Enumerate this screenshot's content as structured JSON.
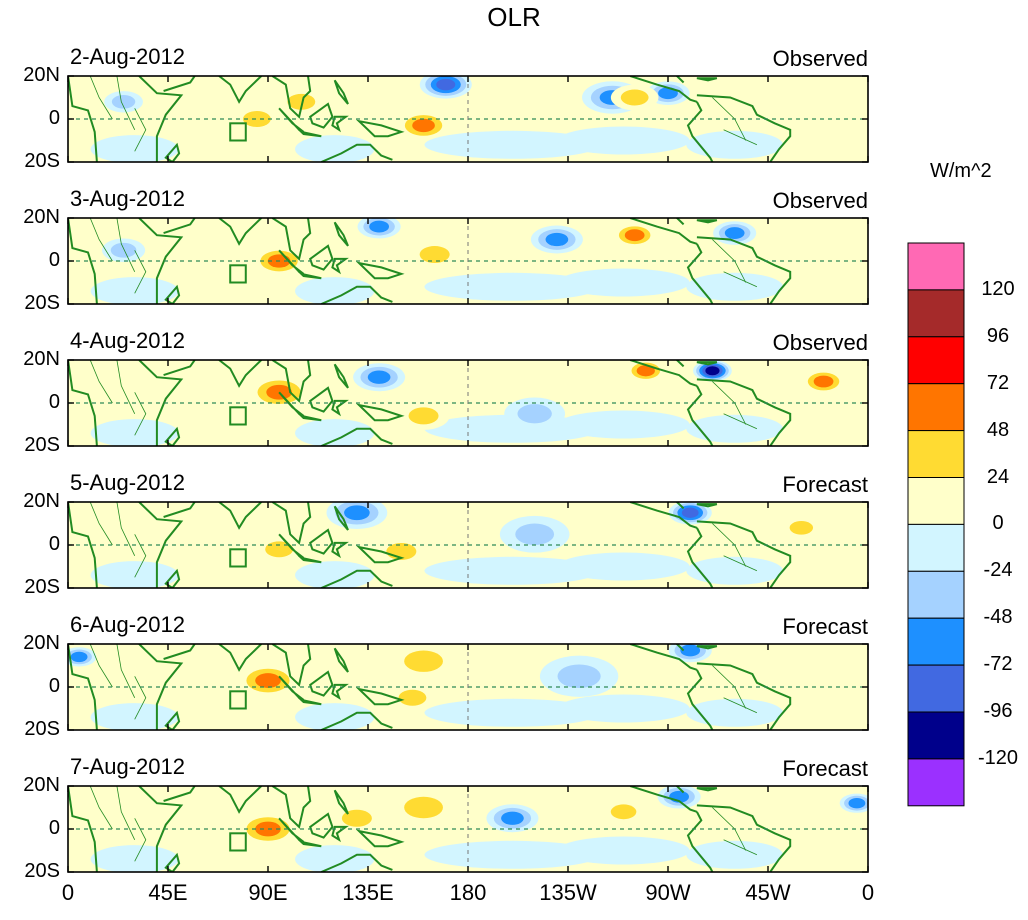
{
  "chart_data": {
    "type": "heatmap",
    "title": "OLR",
    "variable": "OLR anomaly",
    "units": "W/m^2",
    "x_axis": {
      "ticks": [
        "0",
        "45E",
        "90E",
        "135E",
        "180",
        "135W",
        "90W",
        "45W",
        "0"
      ],
      "range_deg_east": [
        0,
        360
      ]
    },
    "y_axis": {
      "ticks": [
        "20N",
        "0",
        "20S"
      ],
      "range_lat": [
        -20,
        20
      ]
    },
    "colorbar": {
      "labels": [
        "120",
        "96",
        "72",
        "48",
        "24",
        "0",
        "-24",
        "-48",
        "-72",
        "-96",
        "-120"
      ],
      "levels": [
        120,
        96,
        72,
        48,
        24,
        0,
        -24,
        -48,
        -72,
        -96,
        -120
      ],
      "colors": [
        "#ff69b4",
        "#a52a2a",
        "#ff0000",
        "#ff7500",
        "#ffdb32",
        "#ffffca",
        "#d2f5ff",
        "#a5d2ff",
        "#1e90ff",
        "#4169e1",
        "#00008b",
        "#9b30ff"
      ]
    },
    "panels": [
      {
        "date": "2-Aug-2012",
        "type": "Observed",
        "anomalies": [
          {
            "lon": 170,
            "lat": 16,
            "r": 10,
            "value": -90
          },
          {
            "lon": 245,
            "lat": 10,
            "r": 12,
            "value": -60
          },
          {
            "lon": 270,
            "lat": 12,
            "r": 8,
            "value": -55
          },
          {
            "lon": 160,
            "lat": -3,
            "r": 10,
            "value": 50
          },
          {
            "lon": 85,
            "lat": 0,
            "r": 9,
            "value": 40
          },
          {
            "lon": 255,
            "lat": 10,
            "r": 9,
            "value": 45
          },
          {
            "lon": 25,
            "lat": 8,
            "r": 7,
            "value": -45
          },
          {
            "lon": 105,
            "lat": 8,
            "r": 9,
            "value": 30
          }
        ]
      },
      {
        "date": "3-Aug-2012",
        "type": "Observed",
        "anomalies": [
          {
            "lon": 95,
            "lat": 0,
            "r": 10,
            "value": 50
          },
          {
            "lon": 165,
            "lat": 3,
            "r": 10,
            "value": 45
          },
          {
            "lon": 220,
            "lat": 10,
            "r": 10,
            "value": -50
          },
          {
            "lon": 255,
            "lat": 12,
            "r": 8,
            "value": 50
          },
          {
            "lon": 300,
            "lat": 13,
            "r": 8,
            "value": -60
          },
          {
            "lon": 140,
            "lat": 16,
            "r": 8,
            "value": -60
          },
          {
            "lon": 25,
            "lat": 5,
            "r": 8,
            "value": -35
          }
        ]
      },
      {
        "date": "4-Aug-2012",
        "type": "Observed",
        "anomalies": [
          {
            "lon": 95,
            "lat": 5,
            "r": 12,
            "value": 70
          },
          {
            "lon": 160,
            "lat": -6,
            "r": 10,
            "value": 45
          },
          {
            "lon": 290,
            "lat": 15,
            "r": 7,
            "value": -110
          },
          {
            "lon": 260,
            "lat": 15,
            "r": 7,
            "value": 50
          },
          {
            "lon": 140,
            "lat": 12,
            "r": 10,
            "value": -50
          },
          {
            "lon": 210,
            "lat": -5,
            "r": 12,
            "value": -35
          },
          {
            "lon": 340,
            "lat": 10,
            "r": 8,
            "value": 50
          }
        ]
      },
      {
        "date": "5-Aug-2012",
        "type": "Forecast",
        "anomalies": [
          {
            "lon": 95,
            "lat": -2,
            "r": 9,
            "value": 40
          },
          {
            "lon": 280,
            "lat": 15,
            "r": 8,
            "value": -90
          },
          {
            "lon": 130,
            "lat": 15,
            "r": 12,
            "value": -50
          },
          {
            "lon": 330,
            "lat": 8,
            "r": 7,
            "value": 40
          },
          {
            "lon": 150,
            "lat": -3,
            "r": 10,
            "value": 30
          },
          {
            "lon": 210,
            "lat": 5,
            "r": 14,
            "value": -30
          }
        ]
      },
      {
        "date": "6-Aug-2012",
        "type": "Forecast",
        "anomalies": [
          {
            "lon": 90,
            "lat": 3,
            "r": 12,
            "value": 55
          },
          {
            "lon": 160,
            "lat": 12,
            "r": 14,
            "value": 40
          },
          {
            "lon": 5,
            "lat": 14,
            "r": 6,
            "value": -60
          },
          {
            "lon": 280,
            "lat": 17,
            "r": 8,
            "value": -70
          },
          {
            "lon": 155,
            "lat": -5,
            "r": 9,
            "value": 35
          },
          {
            "lon": 230,
            "lat": 5,
            "r": 16,
            "value": -30
          }
        ]
      },
      {
        "date": "7-Aug-2012",
        "type": "Forecast",
        "anomalies": [
          {
            "lon": 90,
            "lat": 0,
            "r": 12,
            "value": 55
          },
          {
            "lon": 160,
            "lat": 10,
            "r": 14,
            "value": 40
          },
          {
            "lon": 200,
            "lat": 5,
            "r": 10,
            "value": -50
          },
          {
            "lon": 250,
            "lat": 8,
            "r": 8,
            "value": 40
          },
          {
            "lon": 275,
            "lat": 15,
            "r": 8,
            "value": -60
          },
          {
            "lon": 355,
            "lat": 12,
            "r": 6,
            "value": -60
          },
          {
            "lon": 130,
            "lat": 5,
            "r": 10,
            "value": 30
          }
        ]
      }
    ]
  }
}
